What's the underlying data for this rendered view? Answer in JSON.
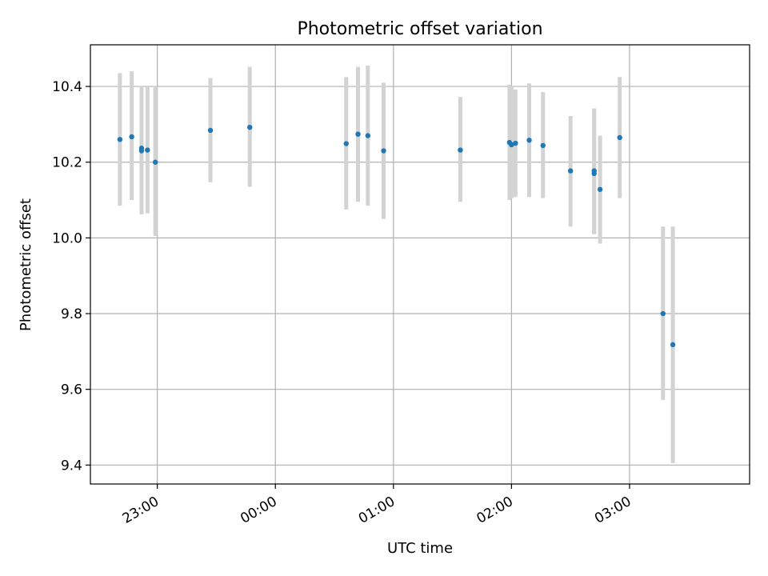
{
  "chart_data": {
    "type": "scatter",
    "title": "Photometric offset variation",
    "xlabel": "UTC time",
    "ylabel": "Photometric offset",
    "xlim": [
      "22:26",
      "04:01"
    ],
    "ylim": [
      9.35,
      10.51
    ],
    "grid": true,
    "x_ticks": [
      "23:00",
      "00:00",
      "01:00",
      "02:00",
      "03:00"
    ],
    "y_ticks": [
      "9.4",
      "9.6",
      "9.8",
      "10.0",
      "10.2",
      "10.4"
    ],
    "series": [
      {
        "color": "#1f77b4",
        "errorbar_color": "#d3d3d3",
        "points": [
          {
            "x": "22:41",
            "y": 10.26,
            "ylo": 10.085,
            "yhi": 10.435
          },
          {
            "x": "22:47",
            "y": 10.267,
            "ylo": 10.1,
            "yhi": 10.44
          },
          {
            "x": "22:52",
            "y": 10.237,
            "ylo": 10.062,
            "yhi": 10.4
          },
          {
            "x": "22:52",
            "y": 10.23,
            "ylo": 10.07,
            "yhi": 10.39
          },
          {
            "x": "22:55",
            "y": 10.232,
            "ylo": 10.065,
            "yhi": 10.4
          },
          {
            "x": "22:59",
            "y": 10.2,
            "ylo": 10.005,
            "yhi": 10.4
          },
          {
            "x": "23:27",
            "y": 10.284,
            "ylo": 10.147,
            "yhi": 10.422
          },
          {
            "x": "23:47",
            "y": 10.292,
            "ylo": 10.135,
            "yhi": 10.452
          },
          {
            "x": "00:36",
            "y": 10.249,
            "ylo": 10.075,
            "yhi": 10.425
          },
          {
            "x": "00:42",
            "y": 10.274,
            "ylo": 10.095,
            "yhi": 10.452
          },
          {
            "x": "00:47",
            "y": 10.27,
            "ylo": 10.085,
            "yhi": 10.455
          },
          {
            "x": "00:55",
            "y": 10.23,
            "ylo": 10.05,
            "yhi": 10.41
          },
          {
            "x": "01:34",
            "y": 10.232,
            "ylo": 10.095,
            "yhi": 10.372
          },
          {
            "x": "01:59",
            "y": 10.252,
            "ylo": 10.1,
            "yhi": 10.405
          },
          {
            "x": "02:00",
            "y": 10.246,
            "ylo": 10.105,
            "yhi": 10.4
          },
          {
            "x": "02:02",
            "y": 10.25,
            "ylo": 10.108,
            "yhi": 10.392
          },
          {
            "x": "02:09",
            "y": 10.258,
            "ylo": 10.108,
            "yhi": 10.408
          },
          {
            "x": "02:16",
            "y": 10.244,
            "ylo": 10.105,
            "yhi": 10.385
          },
          {
            "x": "02:30",
            "y": 10.177,
            "ylo": 10.03,
            "yhi": 10.322
          },
          {
            "x": "02:42",
            "y": 10.17,
            "ylo": 10.01,
            "yhi": 10.335
          },
          {
            "x": "02:42",
            "y": 10.177,
            "ylo": 10.01,
            "yhi": 10.342
          },
          {
            "x": "02:45",
            "y": 10.128,
            "ylo": 9.985,
            "yhi": 10.27
          },
          {
            "x": "02:55",
            "y": 10.265,
            "ylo": 10.105,
            "yhi": 10.425
          },
          {
            "x": "03:17",
            "y": 9.8,
            "ylo": 9.572,
            "yhi": 10.03
          },
          {
            "x": "03:22",
            "y": 9.718,
            "ylo": 9.405,
            "yhi": 10.03
          }
        ]
      }
    ]
  }
}
